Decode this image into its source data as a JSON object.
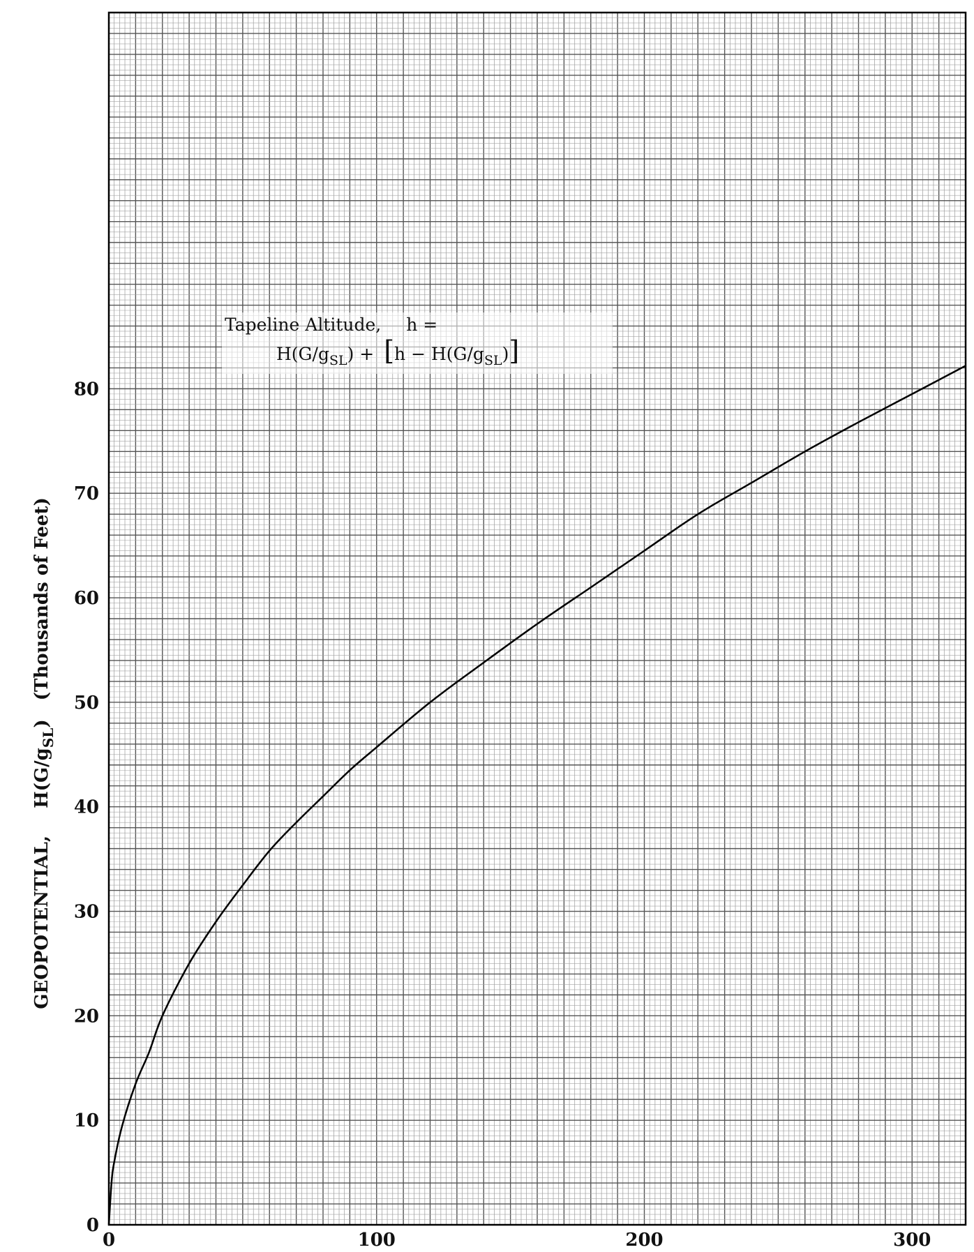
{
  "chart_data": {
    "type": "line",
    "title": "",
    "xlabel": "",
    "ylabel": "GEOPOTENTIAL, H(G/gSL) (Thousands of Feet)",
    "ylabel_parts": {
      "main": "GEOPOTENTIAL,",
      "h_prefix": "H(G/g",
      "h_sub": "SL",
      "h_suffix": ")",
      "units": "(Thousands of Feet)"
    },
    "xlim": [
      0,
      320
    ],
    "ylim": [
      0,
      116
    ],
    "x_ticks": [
      0,
      100,
      200,
      300
    ],
    "y_ticks": [
      0,
      10,
      20,
      30,
      40,
      50,
      60,
      70,
      80
    ],
    "grid": true,
    "annotation": {
      "line1_a": "Tapeline Altitude,",
      "line1_b": "h =",
      "line2_a": "H(G/g",
      "line2_sub1": "SL",
      "line2_b": ") +",
      "line2_bracket_open": "[",
      "line2_c": "h − H(G/g",
      "line2_sub2": "SL",
      "line2_d": ")",
      "line2_bracket_close": "]"
    },
    "series": [
      {
        "x": [
          0,
          1,
          2,
          5,
          10,
          15,
          20,
          30,
          40,
          50,
          60,
          70,
          80,
          90,
          100,
          120,
          140,
          160,
          180,
          200,
          220,
          240,
          260,
          280,
          300,
          320
        ],
        "y": [
          0,
          4,
          6,
          9.5,
          13.5,
          16.5,
          20,
          25,
          29,
          32.5,
          35.8,
          38.5,
          41,
          43.5,
          45.7,
          50,
          53.8,
          57.5,
          61,
          64.5,
          68,
          71,
          74,
          76.8,
          79.5,
          82.2
        ]
      }
    ]
  }
}
